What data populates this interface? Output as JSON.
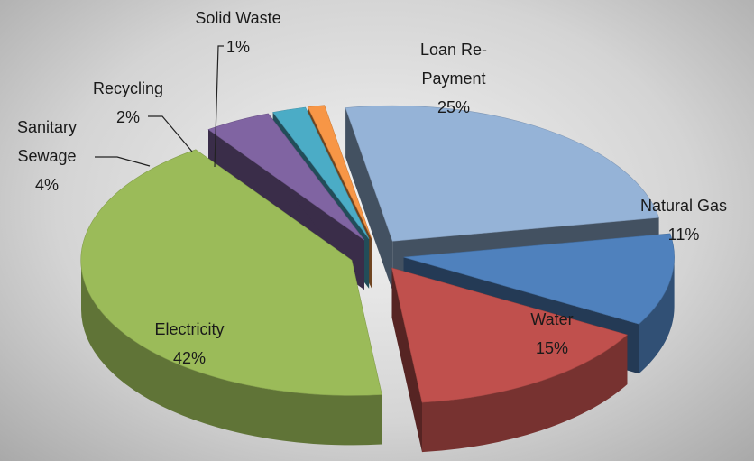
{
  "chart_data": {
    "type": "pie",
    "categories": [
      "Loan Re-Payment",
      "Natural Gas",
      "Water",
      "Electricity",
      "Sanitary Sewage",
      "Recycling",
      "Solid Waste"
    ],
    "values": [
      25,
      11,
      15,
      42,
      4,
      2,
      1
    ],
    "value_labels": [
      "25%",
      "11%",
      "15%",
      "42%",
      "4%",
      "2%",
      "1%"
    ],
    "colors": [
      "#95b3d7",
      "#4f81bd",
      "#c0504d",
      "#9bbb59",
      "#8064a2",
      "#4bacc6",
      "#f79646"
    ],
    "three_d": true,
    "exploded": true
  }
}
